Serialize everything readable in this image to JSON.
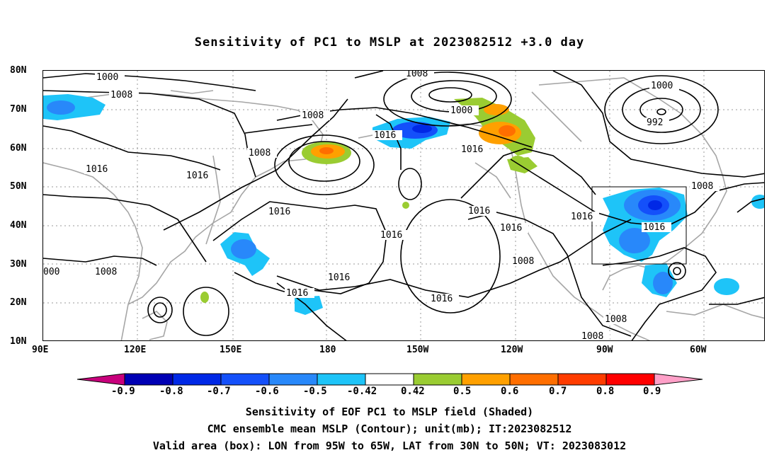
{
  "title": "Sensitivity of PC1 to MSLP at 2023082512 +3.0 day",
  "lat_labels": [
    "80N",
    "70N",
    "60N",
    "50N",
    "40N",
    "30N",
    "20N",
    "10N"
  ],
  "lon_labels": [
    "90E",
    "120E",
    "150E",
    "180",
    "150W",
    "120W",
    "90W",
    "60W"
  ],
  "contour_labels": [
    "1000",
    "1008",
    "1008",
    "1008",
    "1016",
    "1016",
    "1008",
    "1016",
    "1000",
    "1016",
    "1016",
    "1008",
    "1000",
    "992",
    "1008",
    "1016",
    "1016",
    "1016",
    "1016",
    "1016",
    "1016",
    "1016",
    "1016",
    "1008",
    "1008",
    "000",
    "1008"
  ],
  "colorbar": {
    "labels": [
      "-0.9",
      "-0.8",
      "-0.7",
      "-0.6",
      "-0.5",
      "-0.42",
      "0.42",
      "0.5",
      "0.6",
      "0.7",
      "0.8",
      "0.9"
    ],
    "colors": [
      "#c8007c",
      "#0000b4",
      "#0028e6",
      "#1450fa",
      "#2888fa",
      "#1ec4f8",
      "#ffffff",
      "#9acc32",
      "#ffa000",
      "#ff6e00",
      "#ff3c00",
      "#ff0000",
      "#ffa0c8"
    ]
  },
  "captions": [
    "Sensitivity of EOF PC1 to MSLP field (Shaded)",
    "CMC ensemble mean MSLP (Contour); unit(mb); IT:2023082512",
    "Valid area (box): LON from 95W to 65W, LAT from 30N to 50N; VT: 2023083012"
  ]
}
